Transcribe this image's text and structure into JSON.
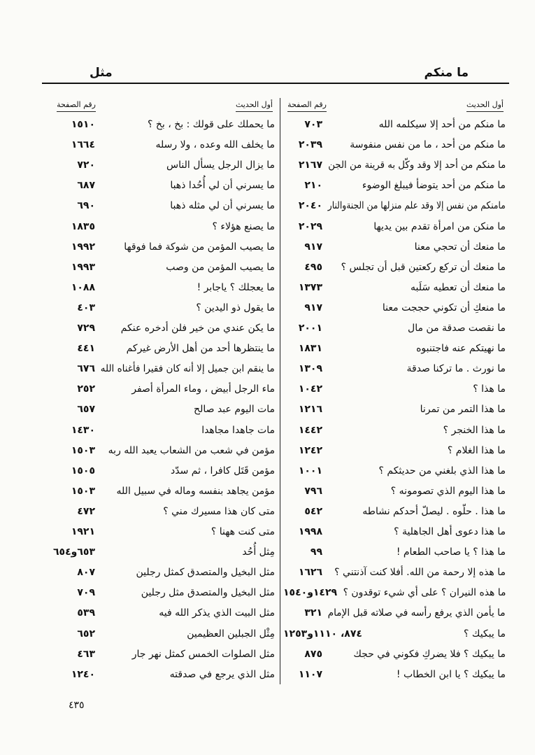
{
  "header": {
    "right_title": "ما منكم",
    "left_title": "مثل"
  },
  "column_headers": {
    "hadith": "أول الحديث",
    "page": "رقم الصفحة"
  },
  "right_column": [
    {
      "text": "ما منكم من أحد إلا سيكلمه الله",
      "page": "٧٠٣"
    },
    {
      "text": "ما منكم من أحد ، ما من نفس منفوسة",
      "page": "٢٠٣٩"
    },
    {
      "text": "ما منكم من أحد إلا وقد وكّل به قرينة من الجن",
      "page": "٢١٦٧"
    },
    {
      "text": "ما منكم من أحد يتوضأ فيبلغ الوضوء",
      "page": "٢١٠"
    },
    {
      "text": "مامنكم من نفس إلا وقد علم منزلها من الجنةوالنار",
      "page": "٢٠٤٠"
    },
    {
      "text": "ما منكن من امرأة تقدم بين يديها",
      "page": "٢٠٢٩"
    },
    {
      "text": "ما منعك أن تحجي معنا",
      "page": "٩١٧"
    },
    {
      "text": "ما منعك أن تركع ركعتين قبل أن تجلس ؟",
      "page": "٤٩٥"
    },
    {
      "text": "ما منعك أن تعطيه سَلَبه",
      "page": "١٣٧٣"
    },
    {
      "text": "ما منعكِ أن تكوني حججت معنا",
      "page": "٩١٧"
    },
    {
      "text": "ما نقصت صدقة من مال",
      "page": "٢٠٠١"
    },
    {
      "text": "ما نهيتكم عنه فاجتنبوه",
      "page": "١٨٣١"
    },
    {
      "text": "ما نورث . ما تركنا صدقة",
      "page": "١٣٠٩"
    },
    {
      "text": "ما هذا ؟",
      "page": "١٠٤٢"
    },
    {
      "text": "ما هذا التمر من تمرنا",
      "page": "١٢١٦"
    },
    {
      "text": "ما هذا الخنجر ؟",
      "page": "١٤٤٢"
    },
    {
      "text": "ما هذا الغلام ؟",
      "page": "١٢٤٢"
    },
    {
      "text": "ما هذا الذي بلغني من حديثكم ؟",
      "page": "١٠٠١"
    },
    {
      "text": "ما هذا اليوم الذي تصومونه ؟",
      "page": "٧٩٦"
    },
    {
      "text": "ما هذا . حلّوه . ليصلّ أحدكم نشاطه",
      "page": "٥٤٢"
    },
    {
      "text": "ما هذا دعوى أهل الجاهلية ؟",
      "page": "١٩٩٨"
    },
    {
      "text": "ما هذا ؟ يا صاحب الطعام !",
      "page": "٩٩"
    },
    {
      "text": "ما هذه إلا رحمة من الله. أفلا كنت آذنتني ؟",
      "page": "١٦٢٦"
    },
    {
      "text": "ما هذه النيران ؟ على أي شيء توقدون ؟",
      "page": "١٤٢٩و١٥٤٠"
    },
    {
      "text": "ما يأمن الذي يرفع رأسه في صلاته قبل الإمام",
      "page": "٣٢١"
    },
    {
      "text": "ما يبكيك ؟",
      "page": "٨٧٤، ١١١٠و١٢٥٣"
    },
    {
      "text": "ما يبكيك ؟ فلا يضركِ فكوني في حجك",
      "page": "٨٧٥"
    },
    {
      "text": "ما يبكيك ؟ يا ابن الخطاب !",
      "page": "١١٠٧"
    }
  ],
  "left_column": [
    {
      "text": "ما يحملك على قولك : بخ ، بخ ؟",
      "page": "١٥١٠"
    },
    {
      "text": "ما يخلف الله وعده ، ولا رسله",
      "page": "١٦٦٤"
    },
    {
      "text": "ما يزال الرجل يسأل الناس",
      "page": "٧٢٠"
    },
    {
      "text": "ما يسرني أن لي أُحُدا ذهبا",
      "page": "٦٨٧"
    },
    {
      "text": "ما يسرني أن لي مثله ذهبا",
      "page": "٦٩٠"
    },
    {
      "text": "ما يصنع هؤلاء ؟",
      "page": "١٨٣٥"
    },
    {
      "text": "ما يصيب المؤمن من شوكة فما فوقها",
      "page": "١٩٩٢"
    },
    {
      "text": "ما يصيب المؤمن من وصب",
      "page": "١٩٩٣"
    },
    {
      "text": "ما يعجلك ؟ ياجابر !",
      "page": "١٠٨٨"
    },
    {
      "text": "ما يقول ذو اليدين ؟",
      "page": "٤٠٣"
    },
    {
      "text": "ما يكن عندي من خير فلن أدخره عنكم",
      "page": "٧٢٩"
    },
    {
      "text": "ما ينتظرها أحد من أهل الأرض غيركم",
      "page": "٤٤١"
    },
    {
      "text": "ما ينقم ابن جميل إلا أنه كان فقيرا فأغناه الله",
      "page": "٦٧٦"
    },
    {
      "text": "ماء الرجل أبيض ، وماء المرأة أصفر",
      "page": "٢٥٢"
    },
    {
      "text": "مات اليوم عبد صالح",
      "page": "٦٥٧"
    },
    {
      "text": "مات جاهدا مجاهدا",
      "page": "١٤٣٠"
    },
    {
      "text": "مؤمن في شعب من الشعاب يعبد الله ربه",
      "page": "١٥٠٣"
    },
    {
      "text": "مؤمن قَتَل كافرا ، ثم سدّد",
      "page": "١٥٠٥"
    },
    {
      "text": "مؤمن يجاهد بنفسه وماله في سبيل الله",
      "page": "١٥٠٣"
    },
    {
      "text": "متى كان هذا مسيرك مني ؟",
      "page": "٤٧٢"
    },
    {
      "text": "متى كنت ههنا ؟",
      "page": "١٩٢١"
    },
    {
      "text": "مِثل أُحُد",
      "page": "٦٥٣و٦٥٤"
    },
    {
      "text": "مثل البخيل والمتصدق كمثل رجلين",
      "page": "٨٠٧"
    },
    {
      "text": "مثل البخيل والمتصدق مثل رجلين",
      "page": "٧٠٩"
    },
    {
      "text": "مثل البيت الذي يذكر الله فيه",
      "page": "٥٣٩"
    },
    {
      "text": "مِثْل الجبلين العظيمين",
      "page": "٦٥٢"
    },
    {
      "text": "مثل الصلوات الخمس كمثل نهر جار",
      "page": "٤٦٣"
    },
    {
      "text": "مثل الذي يرجع في صدقته",
      "page": "١٢٤٠"
    }
  ],
  "page_number": "٤٣٥"
}
